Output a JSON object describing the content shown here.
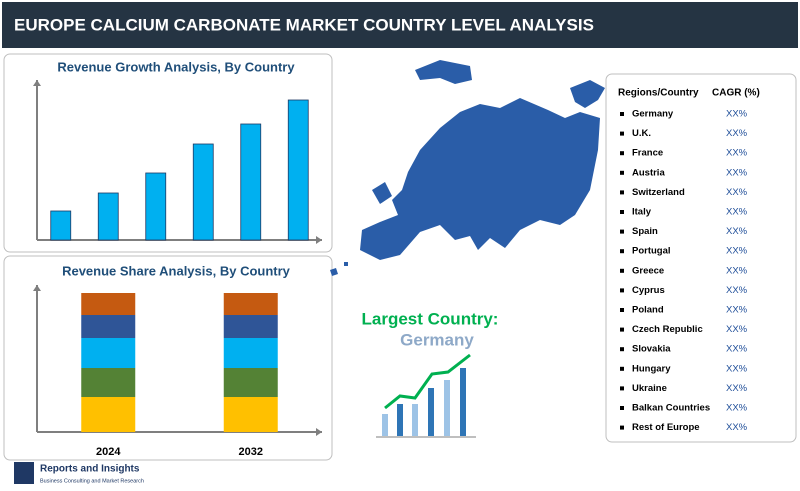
{
  "title": "EUROPE CALCIUM CARBONATE MARKET COUNTRY LEVEL ANALYSIS",
  "chart_data": [
    {
      "type": "bar",
      "title": "Revenue Growth Analysis, By Country",
      "values": [
        29,
        47,
        67,
        96,
        116,
        140
      ],
      "color": "#00b0f0",
      "ylim": [
        0,
        160
      ]
    },
    {
      "type": "stacked_bar",
      "title": "Revenue Share Analysis, By Country",
      "categories": [
        "2024",
        "2032"
      ],
      "ylim": [
        0,
        147
      ],
      "series": [
        {
          "color": "#ffc000",
          "values": [
            35,
            35
          ]
        },
        {
          "color": "#548235",
          "values": [
            29,
            29
          ]
        },
        {
          "color": "#00b0f0",
          "values": [
            30,
            30
          ]
        },
        {
          "color": "#2f5597",
          "values": [
            23,
            23
          ]
        },
        {
          "color": "#c55a11",
          "values": [
            22,
            22
          ]
        }
      ]
    }
  ],
  "largest": {
    "label": "Largest Country:",
    "country": "Germany"
  },
  "table": {
    "header": [
      "Regions/Country",
      "CAGR (%)"
    ],
    "rows": [
      [
        "Germany",
        "XX%"
      ],
      [
        "U.K.",
        "XX%"
      ],
      [
        "France",
        "XX%"
      ],
      [
        "Austria",
        "XX%"
      ],
      [
        "Switzerland",
        "XX%"
      ],
      [
        "Italy",
        "XX%"
      ],
      [
        "Spain",
        "XX%"
      ],
      [
        "Portugal",
        "XX%"
      ],
      [
        "Greece",
        "XX%"
      ],
      [
        "Cyprus",
        "XX%"
      ],
      [
        "Poland",
        "XX%"
      ],
      [
        "Czech Republic",
        "XX%"
      ],
      [
        "Slovakia",
        "XX%"
      ],
      [
        "Hungary",
        "XX%"
      ],
      [
        "Ukraine",
        "XX%"
      ],
      [
        "Balkan Countries",
        "XX%"
      ],
      [
        "Rest of Europe",
        "XX%"
      ]
    ]
  },
  "logo": {
    "name": "Reports and Insights",
    "tagline": "Business Consulting and Market Research"
  }
}
